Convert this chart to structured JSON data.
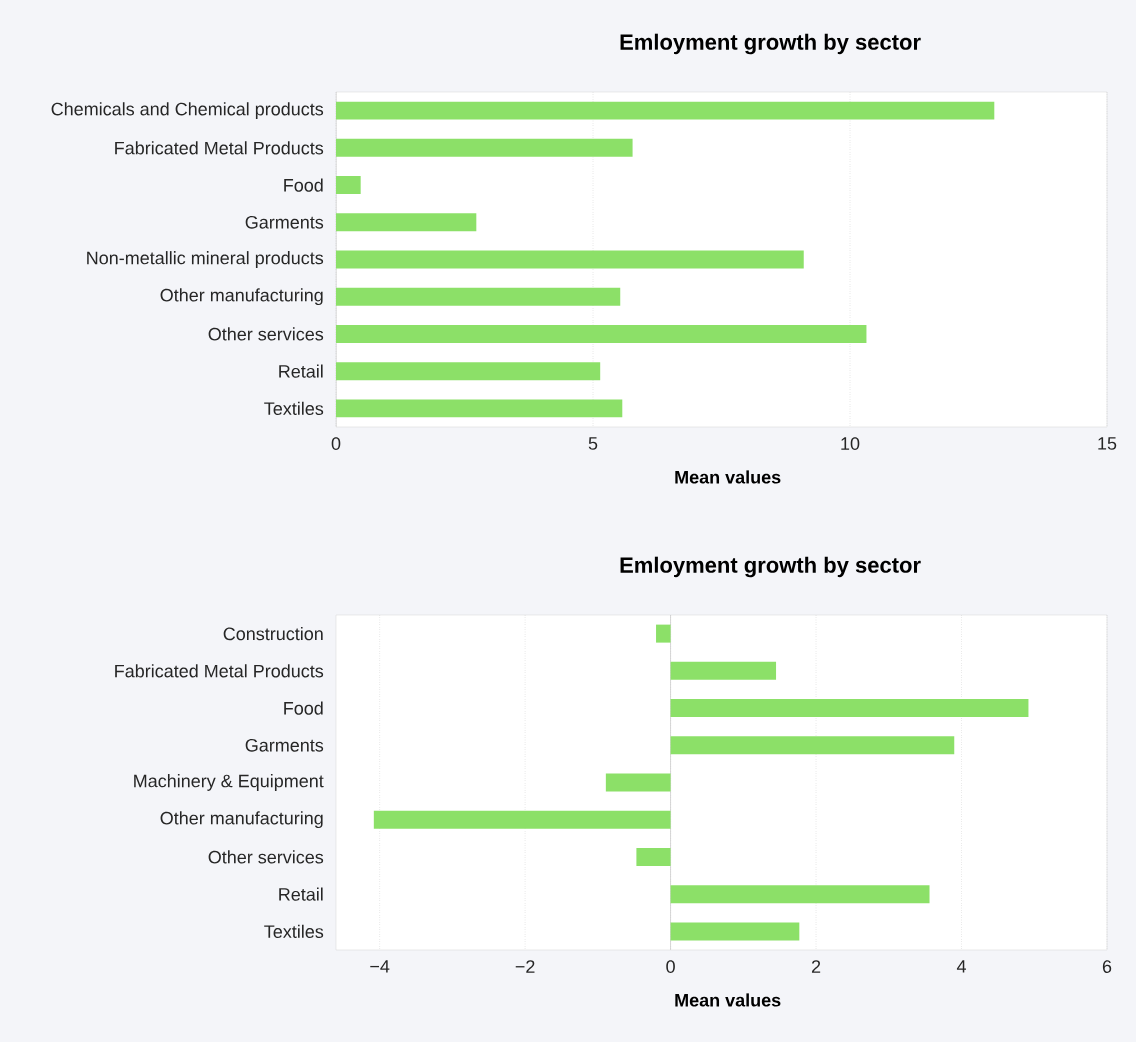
{
  "chart_data": [
    {
      "type": "bar",
      "orientation": "horizontal",
      "title": "Emloyment growth by sector",
      "xlabel": "Mean values",
      "categories": [
        "Chemicals and Chemical products",
        "Fabricated Metal Products",
        "Food",
        "Garments",
        "Non-metallic mineral products",
        "Other manufacturing",
        "Other services",
        "Retail",
        "Textiles"
      ],
      "values": [
        12.81,
        5.77,
        0.48,
        2.73,
        9.1,
        5.53,
        10.32,
        5.14,
        5.57
      ],
      "color": "#8ce068",
      "xlim": [
        0,
        15
      ],
      "xticks": [
        0,
        5,
        10,
        15
      ],
      "grid": "x"
    },
    {
      "type": "bar",
      "orientation": "horizontal",
      "title": "Emloyment growth by sector",
      "xlabel": "Mean values",
      "categories": [
        "Construction",
        "Fabricated Metal Products",
        "Food",
        "Garments",
        "Machinery & Equipment",
        "Other manufacturing",
        "Other services",
        "Retail",
        "Textiles"
      ],
      "values": [
        -0.2,
        1.45,
        4.92,
        3.9,
        -0.89,
        -4.08,
        -0.47,
        3.56,
        1.77
      ],
      "color": "#8ce068",
      "xlim": [
        -4.6,
        6
      ],
      "xticks": [
        {
          "value": -4,
          "label": "−4"
        },
        {
          "value": -2,
          "label": "−2"
        },
        0,
        2,
        4,
        6
      ],
      "grid": "x"
    }
  ]
}
